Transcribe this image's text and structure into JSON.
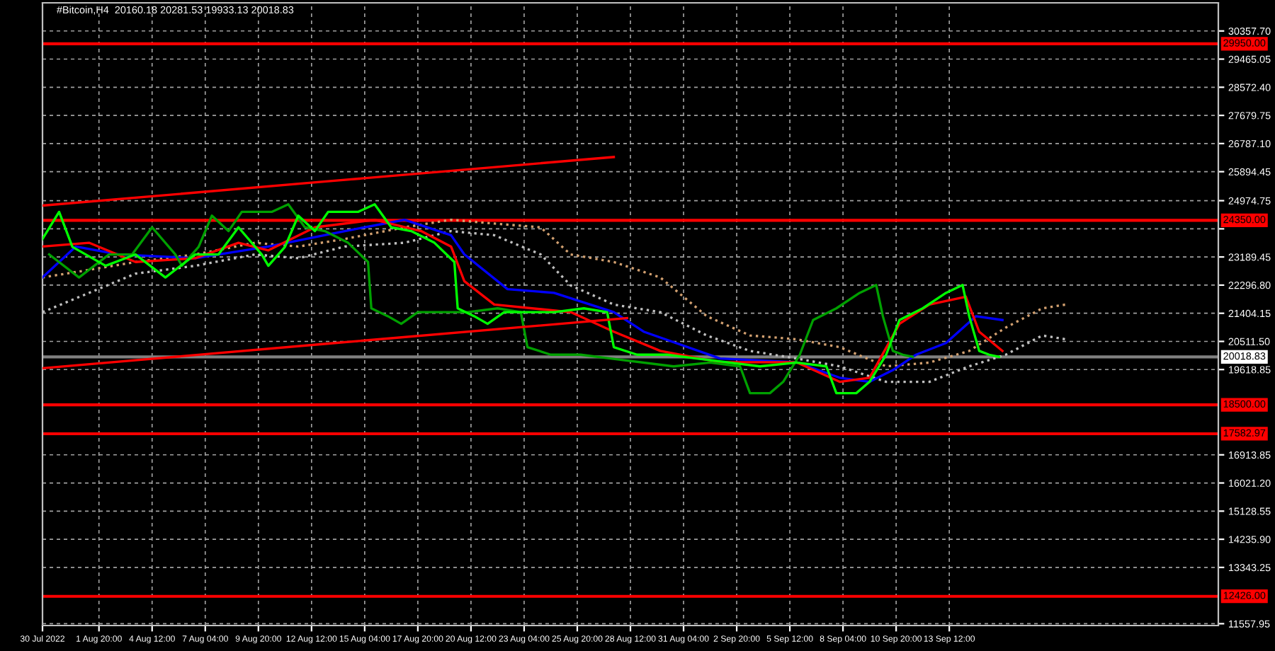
{
  "chart_data": {
    "type": "line",
    "title": "#Bitcoin,H4  20160.18 20281.53 19933.13 20018.83",
    "xlim": [
      "2022-07-30T00:00",
      "2022-09-27T00:00"
    ],
    "xticks": [
      {
        "value": "2022-07-30T00:00",
        "label": "30 Jul 2022"
      },
      {
        "value": "2022-08-01T20:00",
        "label": "1 Aug 20:00"
      },
      {
        "value": "2022-08-04T12:00",
        "label": "4 Aug 12:00"
      },
      {
        "value": "2022-08-07T04:00",
        "label": "7 Aug 04:00"
      },
      {
        "value": "2022-08-09T20:00",
        "label": "9 Aug 20:00"
      },
      {
        "value": "2022-08-12T12:00",
        "label": "12 Aug 12:00"
      },
      {
        "value": "2022-08-15T04:00",
        "label": "15 Aug 04:00"
      },
      {
        "value": "2022-08-17T20:00",
        "label": "17 Aug 20:00"
      },
      {
        "value": "2022-08-20T12:00",
        "label": "20 Aug 12:00"
      },
      {
        "value": "2022-08-23T04:00",
        "label": "23 Aug 04:00"
      },
      {
        "value": "2022-08-25T20:00",
        "label": "25 Aug 20:00"
      },
      {
        "value": "2022-08-28T12:00",
        "label": "28 Aug 12:00"
      },
      {
        "value": "2022-08-31T04:00",
        "label": "31 Aug 04:00"
      },
      {
        "value": "2022-09-02T20:00",
        "label": "2 Sep 20:00"
      },
      {
        "value": "2022-09-05T12:00",
        "label": "5 Sep 12:00"
      },
      {
        "value": "2022-09-08T04:00",
        "label": "8 Sep 04:00"
      },
      {
        "value": "2022-09-10T20:00",
        "label": "10 Sep 20:00"
      },
      {
        "value": "2022-09-13T12:00",
        "label": "13 Sep 12:00"
      }
    ],
    "ylim": [
      11500,
      31250
    ],
    "yticks": [
      {
        "value": 30357.7,
        "label": "30357.70"
      },
      {
        "value": 29465.05,
        "label": "29465.05"
      },
      {
        "value": 28572.4,
        "label": "28572.40"
      },
      {
        "value": 27679.75,
        "label": "27679.75"
      },
      {
        "value": 26787.1,
        "label": "26787.10"
      },
      {
        "value": 25894.45,
        "label": "25894.45"
      },
      {
        "value": 24974.75,
        "label": "24974.75"
      },
      {
        "value": 24082.1,
        "label": null
      },
      {
        "value": 23189.45,
        "label": "23189.45"
      },
      {
        "value": 22296.8,
        "label": "22296.80"
      },
      {
        "value": 21404.15,
        "label": "21404.15"
      },
      {
        "value": 20511.5,
        "label": "20511.50"
      },
      {
        "value": 19618.85,
        "label": "19618.85"
      },
      {
        "value": 16913.85,
        "label": "16913.85"
      },
      {
        "value": 16021.2,
        "label": "16021.20"
      },
      {
        "value": 15128.55,
        "label": "15128.55"
      },
      {
        "value": 14235.9,
        "label": "14235.90"
      },
      {
        "value": 13343.25,
        "label": "13343.25"
      },
      {
        "value": 11557.95,
        "label": "11557.95"
      }
    ],
    "grid": true,
    "ref_lines": [
      {
        "axis": "y",
        "value": 29950,
        "label": "29950.00",
        "color": "#ff0000"
      },
      {
        "axis": "y",
        "value": 24350,
        "label": "24350.00",
        "color": "#ff0000"
      },
      {
        "axis": "y",
        "value": 18500,
        "label": "18500.00",
        "color": "#ff0000"
      },
      {
        "axis": "y",
        "value": 17582.97,
        "label": "17582.97",
        "color": "#ff0000"
      },
      {
        "axis": "y",
        "value": 12426,
        "label": "12426.00",
        "color": "#ff0000"
      },
      {
        "axis": "y",
        "value": 20018.83,
        "label": "20018.83",
        "color": "#808080"
      }
    ],
    "series": [
      {
        "type": "line",
        "color": "#d2a070",
        "line_style": "dotted",
        "x": [
          "2022-07-30T00:00",
          "2022-08-01T08:00",
          "2022-08-03T16:00",
          "2022-08-06T16:00",
          "2022-08-09T16:00",
          "2022-08-11T20:00",
          "2022-08-14T04:00",
          "2022-08-17T04:00",
          "2022-08-19T12:00",
          "2022-08-21T16:00",
          "2022-08-24T00:00",
          "2022-08-25T12:00",
          "2022-08-27T16:00",
          "2022-08-30T00:00",
          "2022-09-01T08:00",
          "2022-09-03T12:00",
          "2022-09-05T20:00",
          "2022-09-08T00:00",
          "2022-09-10T08:00",
          "2022-09-12T12:00",
          "2022-09-14T12:00",
          "2022-09-16T08:00",
          "2022-09-18T04:00",
          "2022-09-19T08:00"
        ],
        "values": [
          22540,
          22780,
          23030,
          23270,
          23640,
          23520,
          23760,
          24130,
          24370,
          24250,
          24130,
          23270,
          23030,
          22540,
          21310,
          20700,
          20580,
          20330,
          19720,
          19840,
          20210,
          20950,
          21560,
          21680
        ]
      },
      {
        "type": "line",
        "color": "#c0c0c0",
        "line_style": "dotted",
        "x": [
          "2022-07-30T00:00",
          "2022-08-01T08:00",
          "2022-08-03T16:00",
          "2022-08-06T16:00",
          "2022-08-09T16:00",
          "2022-08-11T20:00",
          "2022-08-14T04:00",
          "2022-08-17T04:00",
          "2022-08-19T12:00",
          "2022-08-21T16:00",
          "2022-08-24T00:00",
          "2022-08-25T12:00",
          "2022-08-27T16:00",
          "2022-08-30T00:00",
          "2022-09-01T08:00",
          "2022-09-03T12:00",
          "2022-09-05T20:00",
          "2022-09-08T00:00",
          "2022-09-10T08:00",
          "2022-09-12T12:00",
          "2022-09-14T12:00",
          "2022-09-16T08:00",
          "2022-09-18T04:00",
          "2022-09-19T08:00"
        ],
        "values": [
          21440,
          22050,
          22660,
          22910,
          23270,
          23150,
          23520,
          23640,
          24010,
          23880,
          23270,
          22290,
          21680,
          21440,
          20700,
          20210,
          19970,
          19720,
          19230,
          19230,
          19720,
          20090,
          20700,
          20580
        ]
      },
      {
        "type": "line",
        "color": "#0000ff",
        "x": [
          "2022-07-30T00:00",
          "2022-07-31T16:00",
          "2022-08-02T20:00",
          "2022-08-06T16:00",
          "2022-08-10T08:00",
          "2022-08-14T04:00",
          "2022-08-17T04:00",
          "2022-08-19T12:00",
          "2022-08-20T04:00",
          "2022-08-22T08:00",
          "2022-08-24T16:00",
          "2022-08-27T16:00",
          "2022-08-29T04:00",
          "2022-09-02T00:00",
          "2022-09-05T20:00",
          "2022-09-08T00:00",
          "2022-09-09T12:00",
          "2022-09-10T16:00",
          "2022-09-11T20:00",
          "2022-09-13T08:00",
          "2022-09-14T20:00",
          "2022-09-16T04:00"
        ],
        "values": [
          22540,
          23520,
          23270,
          23150,
          23520,
          24010,
          24370,
          23880,
          23270,
          22170,
          22050,
          21440,
          20820,
          19970,
          19850,
          19360,
          19230,
          19600,
          20090,
          20460,
          21310,
          21190
        ]
      },
      {
        "type": "line",
        "color": "#ff0000",
        "x": [
          "2022-07-30T00:00",
          "2022-08-01T08:00",
          "2022-08-03T16:00",
          "2022-08-06T16:00",
          "2022-08-08T20:00",
          "2022-08-10T08:00",
          "2022-08-12T16:00",
          "2022-08-15T16:00",
          "2022-08-18T00:00",
          "2022-08-19T12:00",
          "2022-08-20T04:00",
          "2022-08-21T16:00",
          "2022-08-25T12:00",
          "2022-08-27T16:00",
          "2022-08-30T00:00",
          "2022-09-02T00:00",
          "2022-09-05T20:00",
          "2022-09-08T00:00",
          "2022-09-09T12:00",
          "2022-09-11T00:00",
          "2022-09-12T12:00",
          "2022-09-14T08:00",
          "2022-09-15T00:00",
          "2022-09-16T04:00"
        ],
        "values": [
          23520,
          23640,
          23030,
          23150,
          23640,
          23400,
          24130,
          24370,
          24010,
          23520,
          22420,
          21680,
          21440,
          20820,
          20210,
          19850,
          19850,
          19230,
          19360,
          21070,
          21680,
          21930,
          20820,
          20210
        ]
      },
      {
        "type": "line",
        "color": "#00a000",
        "x": [
          "2022-07-30T08:00",
          "2022-07-31T20:00",
          "2022-08-02T08:00",
          "2022-08-03T12:00",
          "2022-08-04T12:00",
          "2022-08-05T16:00",
          "2022-08-06T00:00",
          "2022-08-06T20:00",
          "2022-08-07T12:00",
          "2022-08-08T08:00",
          "2022-08-09T00:00",
          "2022-08-10T12:00",
          "2022-08-11T08:00",
          "2022-08-12T04:00",
          "2022-08-13T04:00",
          "2022-08-14T08:00",
          "2022-08-15T08:00",
          "2022-08-15T12:00",
          "2022-08-16T08:00",
          "2022-08-17T00:00",
          "2022-08-17T20:00",
          "2022-08-20T08:00",
          "2022-08-21T20:00",
          "2022-08-23T00:00",
          "2022-08-23T08:00",
          "2022-08-24T12:00",
          "2022-08-26T00:00",
          "2022-08-27T12:00",
          "2022-08-30T16:00",
          "2022-09-01T12:00",
          "2022-09-03T00:00",
          "2022-09-03T12:00",
          "2022-09-04T12:00",
          "2022-09-05T04:00",
          "2022-09-06T00:00",
          "2022-09-06T16:00",
          "2022-09-07T20:00",
          "2022-09-09T00:00",
          "2022-09-09T20:00",
          "2022-09-10T04:00",
          "2022-09-10T16:00",
          "2022-09-11T04:00",
          "2022-09-11T16:00"
        ],
        "values": [
          23270,
          22540,
          23270,
          23270,
          24130,
          23270,
          22910,
          23510,
          24500,
          24010,
          24620,
          24620,
          24860,
          24130,
          24010,
          23640,
          23030,
          21560,
          21310,
          21070,
          21440,
          21440,
          21560,
          21440,
          20330,
          20090,
          20090,
          19970,
          19720,
          19840,
          19720,
          18870,
          18870,
          19230,
          20090,
          21190,
          21560,
          22050,
          22300,
          21310,
          20210,
          20090,
          20020
        ]
      },
      {
        "type": "line",
        "color": "#00ff00",
        "x": [
          "2022-07-30T00:00",
          "2022-07-30T20:00",
          "2022-07-31T12:00",
          "2022-08-02T04:00",
          "2022-08-03T16:00",
          "2022-08-05T04:00",
          "2022-08-06T16:00",
          "2022-08-07T20:00",
          "2022-08-08T20:00",
          "2022-08-10T00:00",
          "2022-08-10T08:00",
          "2022-08-11T04:00",
          "2022-08-11T20:00",
          "2022-08-12T16:00",
          "2022-08-13T08:00",
          "2022-08-14T20:00",
          "2022-08-15T16:00",
          "2022-08-16T12:00",
          "2022-08-17T12:00",
          "2022-08-18T16:00",
          "2022-08-19T16:00",
          "2022-08-19T20:00",
          "2022-08-20T16:00",
          "2022-08-21T08:00",
          "2022-08-22T04:00",
          "2022-08-24T16:00",
          "2022-08-26T04:00",
          "2022-08-27T08:00",
          "2022-08-27T16:00",
          "2022-08-28T20:00",
          "2022-08-30T08:00",
          "2022-08-31T20:00",
          "2022-09-04T00:00",
          "2022-09-05T20:00",
          "2022-09-07T08:00",
          "2022-09-07T20:00",
          "2022-09-08T20:00",
          "2022-09-09T12:00",
          "2022-09-10T08:00",
          "2022-09-11T00:00",
          "2022-09-12T04:00",
          "2022-09-13T08:00",
          "2022-09-14T04:00",
          "2022-09-14T12:00",
          "2022-09-15T00:00",
          "2022-09-15T12:00",
          "2022-09-16T00:00"
        ],
        "values": [
          23760,
          24620,
          23510,
          22910,
          23270,
          22540,
          23270,
          23270,
          24130,
          23270,
          22910,
          23510,
          24500,
          24010,
          24620,
          24620,
          24860,
          24130,
          24010,
          23640,
          23030,
          21560,
          21310,
          21070,
          21440,
          21440,
          21560,
          21440,
          20330,
          20090,
          20090,
          19970,
          19720,
          19840,
          19720,
          18870,
          18870,
          19230,
          20090,
          21190,
          21560,
          22050,
          22300,
          21310,
          20210,
          20090,
          20020
        ]
      },
      {
        "type": "line",
        "color": "#ff0000",
        "x": [
          "2022-07-30T00:00",
          "2022-08-13T08:00",
          "2022-08-27T16:00"
        ],
        "values": [
          24820,
          25590,
          26360
        ]
      },
      {
        "type": "line",
        "color": "#ff0000",
        "x": [
          "2022-07-30T00:00",
          "2022-08-13T16:00",
          "2022-08-28T08:00"
        ],
        "values": [
          19660,
          20460,
          21250
        ]
      }
    ]
  }
}
